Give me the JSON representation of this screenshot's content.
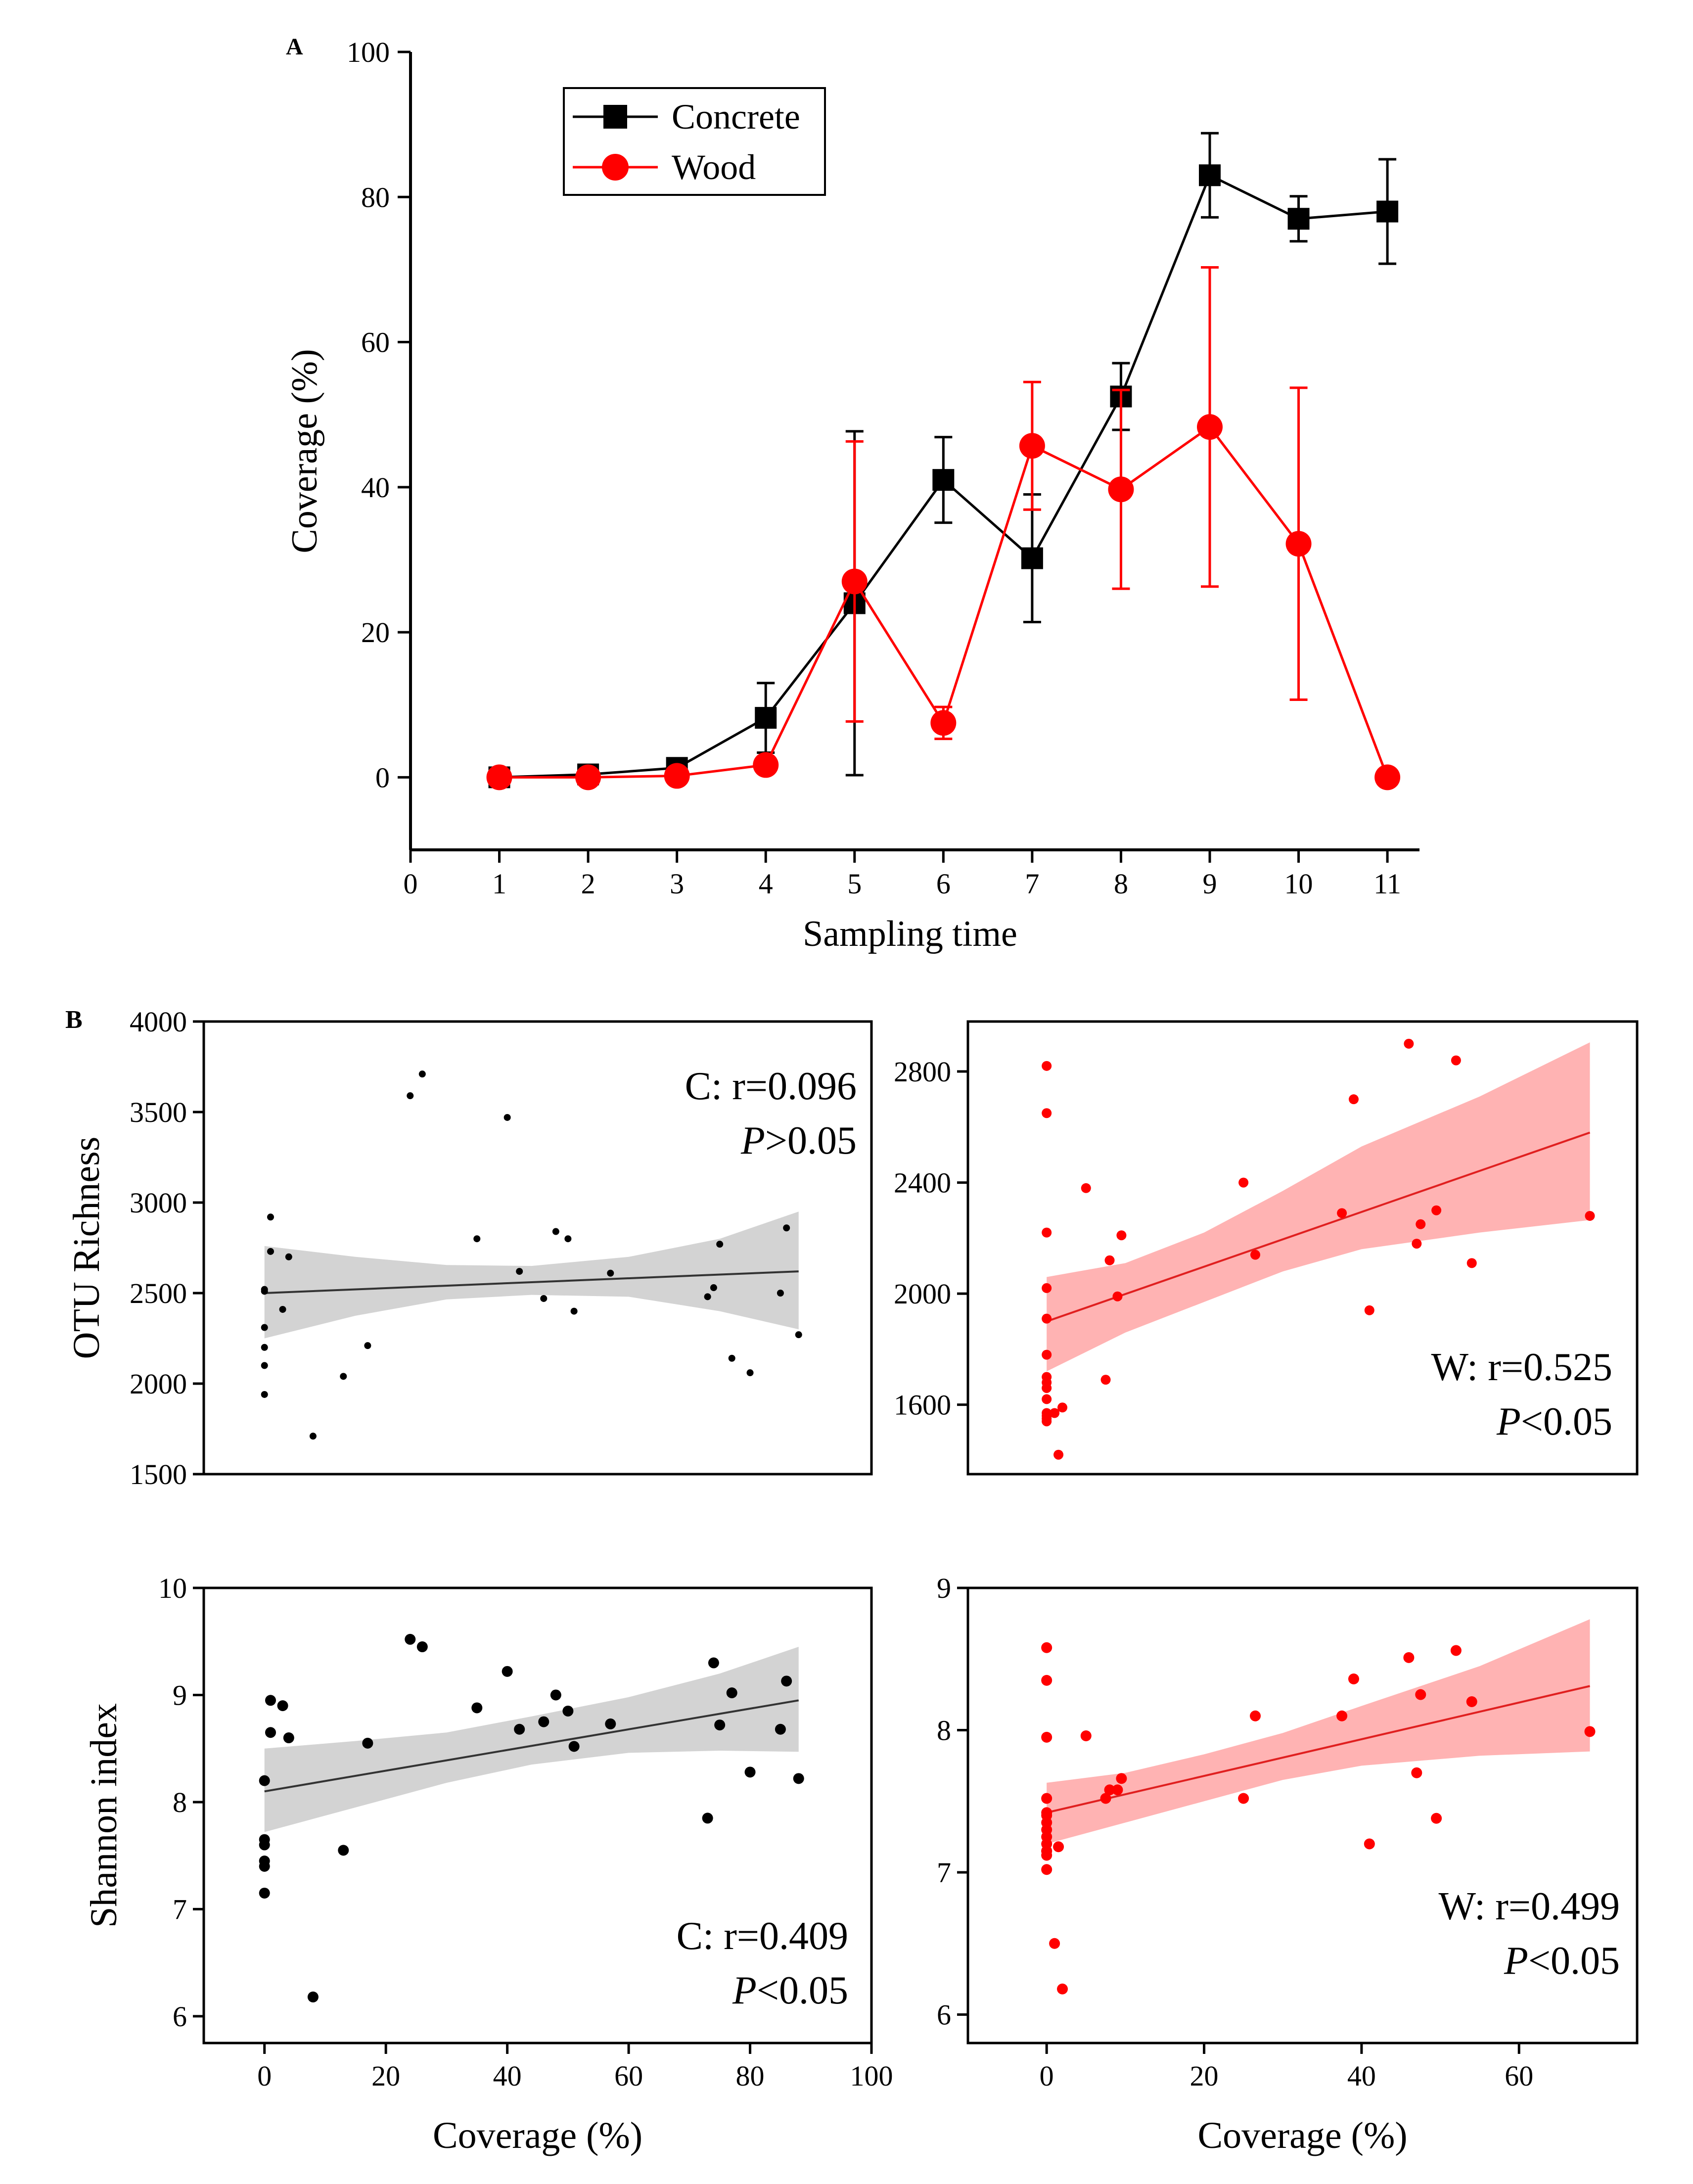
{
  "panel_labels": {
    "a": "A",
    "b": "B"
  },
  "chart_data": [
    {
      "id": "A",
      "type": "line",
      "xlabel": "Sampling time",
      "ylabel": "Coverage (%)",
      "xlim": [
        0,
        11.25
      ],
      "ylim": [
        -10,
        100
      ],
      "xticks": [
        0,
        1,
        2,
        3,
        4,
        5,
        6,
        7,
        8,
        9,
        10,
        11
      ],
      "yticks": [
        0,
        20,
        40,
        60,
        80,
        100
      ],
      "legend": {
        "position": "top-left"
      },
      "series": [
        {
          "name": "Concrete",
          "color": "#000000",
          "marker": "square",
          "x": [
            1,
            2,
            3,
            4,
            5,
            6,
            7,
            8,
            9,
            10,
            11
          ],
          "values": [
            0,
            0.4,
            1.3,
            8.2,
            24,
            41,
            30.2,
            52.5,
            83,
            77,
            78
          ],
          "errors": [
            0,
            0,
            0,
            4.8,
            23.7,
            5.9,
            8.8,
            4.6,
            5.8,
            3.1,
            7.2
          ]
        },
        {
          "name": "Wood",
          "color": "#ff0000",
          "marker": "circle",
          "x": [
            1,
            2,
            3,
            4,
            5,
            6,
            7,
            8,
            9,
            10,
            11
          ],
          "values": [
            0,
            0,
            0.2,
            1.7,
            27,
            7.5,
            45.7,
            39.7,
            48.3,
            32.2,
            0
          ],
          "errors": [
            0,
            0,
            0,
            0,
            19.3,
            2.2,
            8.8,
            13.7,
            22,
            21.5,
            0
          ]
        }
      ]
    },
    {
      "id": "B-richness-concrete",
      "type": "scatter",
      "ylabel": "OTU Richness",
      "xlabel": "",
      "xlim": [
        -10,
        100
      ],
      "ylim": [
        1500,
        4000
      ],
      "xticks": [],
      "yticks": [
        1500,
        2000,
        2500,
        3000,
        3500,
        4000
      ],
      "color": "#000000",
      "band_color": "#d3d3d3",
      "annotation": {
        "stat": "C: r=0.096",
        "p_symbol": "P",
        "p_rest": ">0.05"
      },
      "fit": {
        "x": [
          0,
          88
        ],
        "y": [
          2500,
          2620
        ]
      },
      "band_upper": [
        2760,
        2700,
        2655,
        2650,
        2700,
        2800,
        2950
      ],
      "band_lower": [
        2250,
        2375,
        2465,
        2490,
        2480,
        2400,
        2300
      ],
      "band_x": [
        0,
        15,
        30,
        44,
        60,
        75,
        88
      ],
      "x": [
        0,
        0,
        0,
        0,
        0,
        0,
        1,
        1,
        3,
        4,
        8,
        13,
        17,
        24,
        26,
        35,
        40,
        42,
        46,
        48,
        50,
        51,
        57,
        73,
        74,
        75,
        77,
        80,
        85,
        86,
        88
      ],
      "y": [
        2520,
        2310,
        2200,
        2100,
        1940,
        2510,
        2920,
        2730,
        2410,
        2700,
        1710,
        2040,
        2210,
        3590,
        3710,
        2800,
        3470,
        2620,
        2470,
        2840,
        2800,
        2400,
        2610,
        2480,
        2530,
        2770,
        2140,
        2060,
        2500,
        2860,
        2270
      ]
    },
    {
      "id": "B-richness-wood",
      "type": "scatter",
      "xlabel": "",
      "ylabel": "",
      "xlim": [
        -10,
        75
      ],
      "ylim": [
        1350,
        2980
      ],
      "xticks": [],
      "yticks": [
        1600,
        2000,
        2400,
        2800
      ],
      "color": "#ff0000",
      "band_color": "#ffb3b3",
      "annotation": {
        "stat": "W: r=0.525",
        "p_symbol": "P",
        "p_rest": "<0.05"
      },
      "fit": {
        "x": [
          0,
          69
        ],
        "y": [
          1900,
          2580
        ]
      },
      "band_upper": [
        2060,
        2110,
        2220,
        2370,
        2530,
        2710,
        2905
      ],
      "band_lower": [
        1720,
        1860,
        1970,
        2080,
        2160,
        2220,
        2265
      ],
      "band_x": [
        0,
        10,
        20,
        30,
        40,
        55,
        69
      ],
      "x": [
        0,
        0,
        0,
        0,
        0,
        0,
        0,
        0,
        0,
        0,
        0,
        0,
        0,
        0,
        1,
        1.5,
        2,
        5,
        7.5,
        8,
        9,
        9.5,
        25,
        26.5,
        37.5,
        39,
        41,
        46,
        47,
        47.5,
        49.5,
        52,
        54,
        69
      ],
      "y": [
        2820,
        2650,
        2220,
        2020,
        1910,
        1780,
        1700,
        1680,
        1660,
        1620,
        1570,
        1560,
        1540,
        1550,
        1570,
        1420,
        1590,
        2380,
        1690,
        2120,
        1990,
        2210,
        2400,
        2140,
        2290,
        2700,
        1940,
        2900,
        2180,
        2250,
        2300,
        2840,
        2110,
        2280
      ]
    },
    {
      "id": "B-shannon-concrete",
      "type": "scatter",
      "ylabel": "Shannon index",
      "xlabel": "Coverage  (%)",
      "xlim": [
        -10,
        100
      ],
      "ylim": [
        5.75,
        10
      ],
      "xticks": [
        0,
        20,
        40,
        60,
        80,
        100
      ],
      "yticks": [
        6,
        7,
        8,
        9,
        10
      ],
      "color": "#000000",
      "band_color": "#d3d3d3",
      "annotation": {
        "stat": "C: r=0.409",
        "p_symbol": "P",
        "p_rest": "<0.05"
      },
      "fit": {
        "x": [
          0,
          88
        ],
        "y": [
          8.1,
          8.95
        ]
      },
      "band_upper": [
        8.5,
        8.57,
        8.65,
        8.8,
        8.98,
        9.2,
        9.45
      ],
      "band_lower": [
        7.72,
        7.95,
        8.18,
        8.35,
        8.46,
        8.48,
        8.47
      ],
      "band_x": [
        0,
        15,
        30,
        44,
        60,
        75,
        88
      ],
      "x": [
        0,
        0,
        0,
        0,
        0,
        0,
        1,
        1,
        3,
        4,
        8,
        13,
        17,
        24,
        26,
        35,
        40,
        42,
        46,
        48,
        50,
        51,
        57,
        73,
        74,
        75,
        77,
        80,
        85,
        86,
        88
      ],
      "y": [
        8.2,
        7.65,
        7.6,
        7.45,
        7.4,
        7.15,
        8.95,
        8.65,
        8.9,
        8.6,
        6.18,
        7.55,
        8.55,
        9.52,
        9.45,
        8.88,
        9.22,
        8.68,
        8.75,
        9.0,
        8.85,
        8.52,
        8.73,
        7.85,
        9.3,
        8.72,
        9.02,
        8.28,
        8.68,
        9.13,
        8.22
      ]
    },
    {
      "id": "B-shannon-wood",
      "type": "scatter",
      "xlabel": "Coverage  (%)",
      "ylabel": "",
      "xlim": [
        -10,
        75
      ],
      "ylim": [
        5.8,
        9.0
      ],
      "xticks": [
        0,
        20,
        40,
        60
      ],
      "yticks": [
        6,
        7,
        8,
        9
      ],
      "color": "#ff0000",
      "band_color": "#ffb3b3",
      "annotation": {
        "stat": "W: r=0.499",
        "p_symbol": "P",
        "p_rest": "<0.05"
      },
      "fit": {
        "x": [
          0,
          69
        ],
        "y": [
          7.42,
          8.31
        ]
      },
      "band_upper": [
        7.63,
        7.7,
        7.83,
        7.98,
        8.17,
        8.45,
        8.78
      ],
      "band_lower": [
        7.2,
        7.35,
        7.5,
        7.65,
        7.75,
        7.82,
        7.85
      ],
      "band_x": [
        0,
        10,
        20,
        30,
        40,
        55,
        69
      ],
      "x": [
        0,
        0,
        0,
        0,
        0,
        0,
        0,
        0,
        0,
        0,
        0,
        0,
        0,
        0,
        1,
        1.5,
        2,
        5,
        7.5,
        8,
        9,
        9.5,
        25,
        26.5,
        37.5,
        39,
        41,
        46,
        47,
        47.5,
        49.5,
        52,
        54,
        69
      ],
      "y": [
        8.58,
        8.35,
        7.95,
        7.52,
        7.4,
        7.35,
        7.3,
        7.25,
        7.2,
        7.15,
        7.12,
        7.02,
        7.42,
        7.15,
        6.5,
        7.18,
        6.18,
        7.96,
        7.52,
        7.58,
        7.58,
        7.66,
        7.52,
        8.1,
        8.1,
        8.36,
        7.2,
        8.51,
        7.7,
        8.25,
        7.38,
        8.56,
        8.2,
        7.99
      ]
    }
  ]
}
